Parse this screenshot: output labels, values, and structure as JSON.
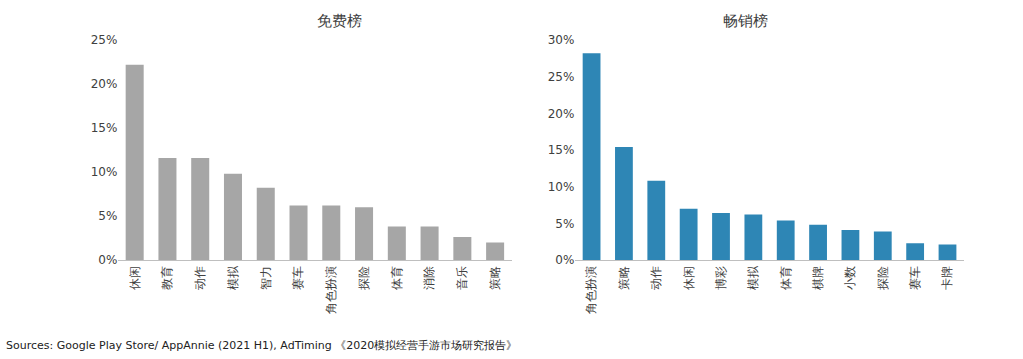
{
  "chart_data": [
    {
      "type": "bar",
      "title": "免费榜",
      "categories": [
        "休闲",
        "教育",
        "动作",
        "模拟",
        "智力",
        "赛车",
        "角色扮演",
        "探险",
        "体育",
        "消除",
        "音乐",
        "策略"
      ],
      "values": [
        22.2,
        11.6,
        11.6,
        9.8,
        8.2,
        6.2,
        6.2,
        6.0,
        3.8,
        3.8,
        2.6,
        2.0
      ],
      "color": "#a6a6a6",
      "ylim": [
        0,
        25
      ],
      "yticks": [
        {
          "value": 0,
          "label": "0%"
        },
        {
          "value": 5,
          "label": "5%"
        },
        {
          "value": 10,
          "label": "10%"
        },
        {
          "value": 15,
          "label": "15%"
        },
        {
          "value": 20,
          "label": "20%"
        },
        {
          "value": 25,
          "label": "25%"
        }
      ],
      "grid": false
    },
    {
      "type": "bar",
      "title": "畅销榜",
      "categories": [
        "角色扮演",
        "策略",
        "动作",
        "休闲",
        "博彩",
        "模拟",
        "体育",
        "棋牌",
        "小数",
        "探险",
        "赛车",
        "卡牌"
      ],
      "values": [
        28.2,
        15.4,
        10.8,
        7.0,
        6.4,
        6.2,
        5.4,
        4.8,
        4.1,
        3.9,
        2.3,
        2.1
      ],
      "color": "#2e86b5",
      "ylim": [
        0,
        30
      ],
      "yticks": [
        {
          "value": 0,
          "label": "0%"
        },
        {
          "value": 5,
          "label": "5%"
        },
        {
          "value": 10,
          "label": "10%"
        },
        {
          "value": 15,
          "label": "15%"
        },
        {
          "value": 20,
          "label": "20%"
        },
        {
          "value": 25,
          "label": "25%"
        },
        {
          "value": 30,
          "label": "30%"
        }
      ],
      "grid": false
    }
  ],
  "source": "Sources: Google Play Store/ AppAnnie (2021 H1), AdTiming 《2020模拟经营手游市场研究报告》"
}
